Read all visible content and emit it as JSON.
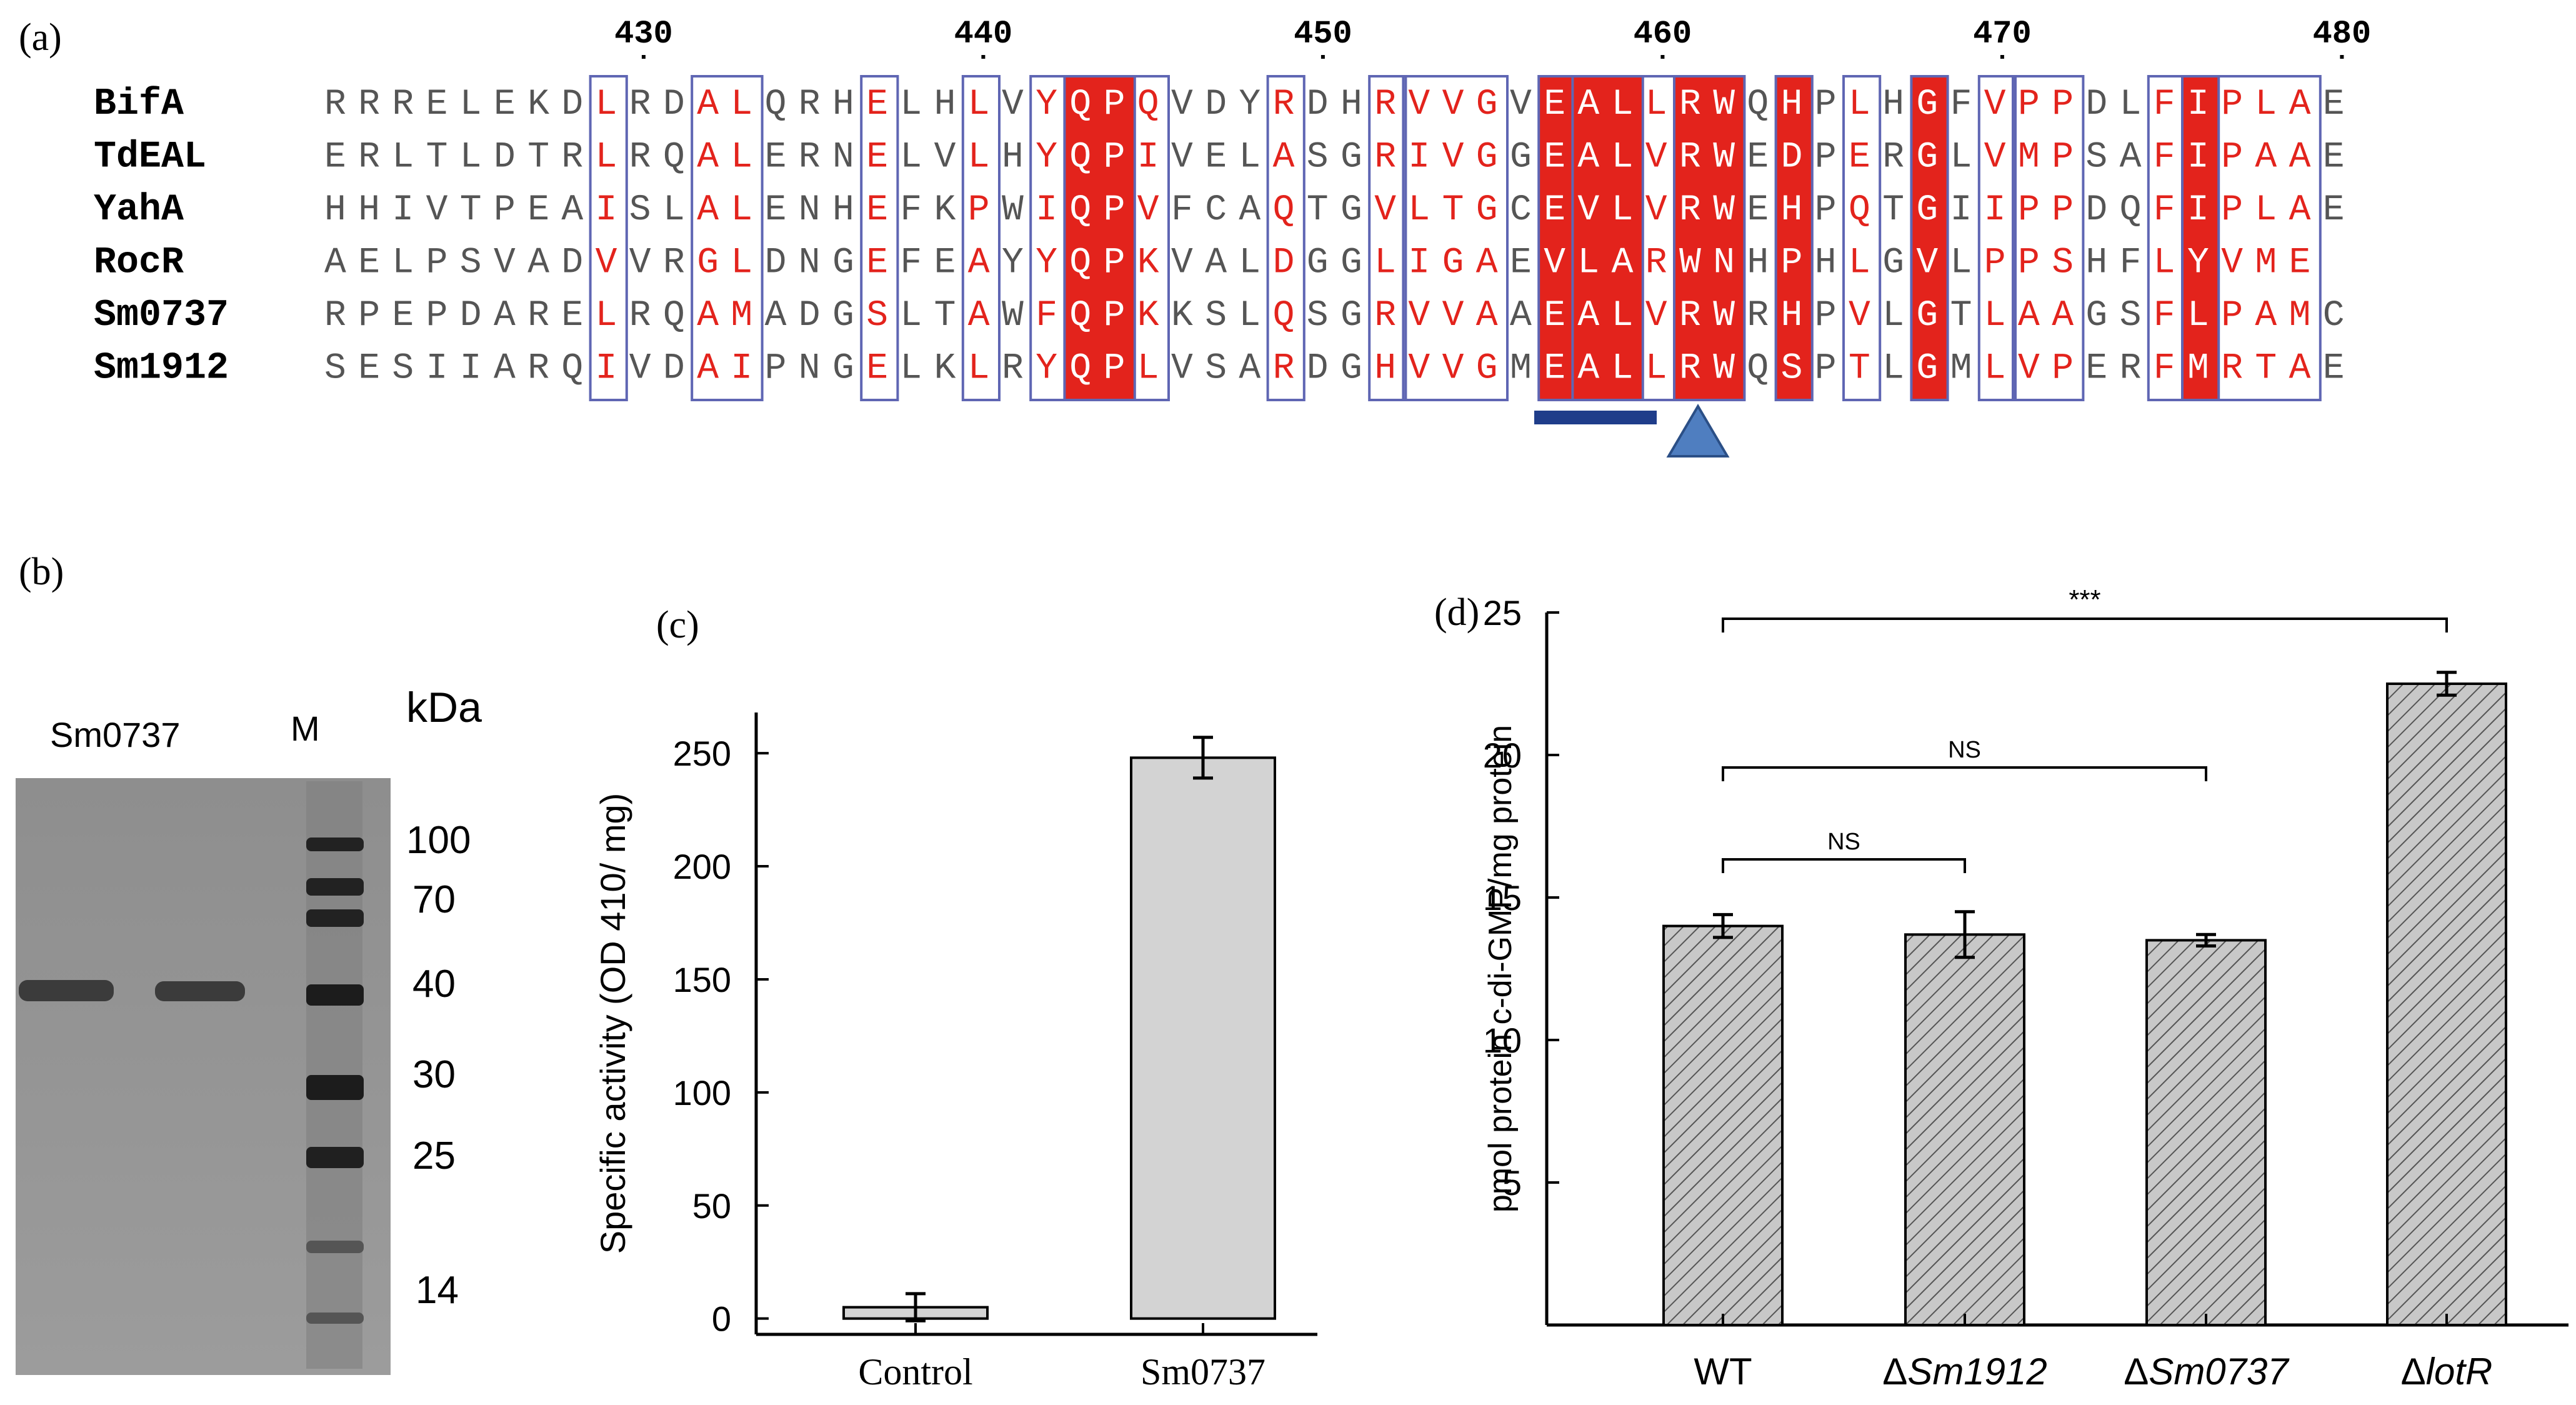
{
  "panel_a": {
    "label": "(a)",
    "ruler": [
      "430",
      "440",
      "450",
      "460",
      "470",
      "480"
    ],
    "sequences": [
      {
        "name": "BifA",
        "seq": "RRRELEKDLRDALQRHELHLVYQPQVDYRDHRVVGVEALLRWQHPLHGFVPPDLFIPLAE"
      },
      {
        "name": "TdEAL",
        "seq": "ERLTLDTRLRQALERNELVLHYQPIVELASGRIVGGEALVRWEDPERGLVMPSAFIPAAE"
      },
      {
        "name": "YahA",
        "seq": "HHIVTPEAISLALENHEFKPWIQPVFCAQTGVLTGCEVLVRWEHPQTGIIPPDQFIPLAE"
      },
      {
        "name": "RocR",
        "seq": "AELPSVADVVRGLDNGEFEAYYQPKVALDGGLIGAEVLARWNHPHLGVLPPSHFLYVME"
      },
      {
        "name": "Sm0737",
        "seq": "RPEPDARELRQAMADGSLTAWFQPKKSLQSGRVVAAEALVRWRHPVLGTLAAGSFLPAMC"
      },
      {
        "name": "Sm1912",
        "seq": "SESIIARQIVDAIPNGELKLRYQPLVSARDGHVVGMEALLRWQSPTLGMLVPERFMRTAE"
      }
    ]
  },
  "panel_b": {
    "label": "(b)",
    "lane_label": "Sm0737",
    "marker_label": "M",
    "unit": "kDa",
    "markers": [
      "100",
      "70",
      "40",
      "30",
      "25",
      "14"
    ]
  },
  "chart_data": [
    {
      "type": "bar",
      "panel": "(c)",
      "categories": [
        "Control",
        "Sm0737"
      ],
      "values": [
        5,
        248
      ],
      "errors": [
        6,
        9
      ],
      "ylabel": "Specific activity (OD 410/ mg)",
      "xlabel": "",
      "ylim": [
        -7,
        268
      ],
      "yticks": [
        "0",
        "50",
        "100",
        "150",
        "200",
        "250"
      ],
      "colors": {
        "bar": "#d3d3d3",
        "edge": "#000000"
      }
    },
    {
      "type": "bar",
      "panel": "(d)",
      "categories": [
        "WT",
        "ΔSm1912",
        "ΔSm0737",
        "ΔlotR"
      ],
      "values": [
        14.0,
        13.7,
        13.5,
        22.5
      ],
      "errors": [
        0.4,
        0.8,
        0.2,
        0.4
      ],
      "ylabel": "pmol protein c-di-GMP/mg protein",
      "xlabel": "",
      "ylim": [
        0,
        25
      ],
      "yticks": [
        "5",
        "10",
        "15",
        "20",
        "25"
      ],
      "significance": [
        {
          "label": "***",
          "from": "WT",
          "to": "ΔlotR"
        },
        {
          "label": "NS",
          "from": "WT",
          "to": "ΔSm0737"
        },
        {
          "label": "NS",
          "from": "WT",
          "to": "ΔSm1912"
        }
      ],
      "colors": {
        "bar": "#c8c8c8",
        "hatch": "#555555",
        "edge": "#000000"
      }
    }
  ],
  "colors": {
    "red_box": "#e3231c",
    "red_text": "#e3231c",
    "blue_box": "#5f66b3",
    "navy_mark": "#1f3d8a",
    "triangle": "#4f7ec0"
  }
}
